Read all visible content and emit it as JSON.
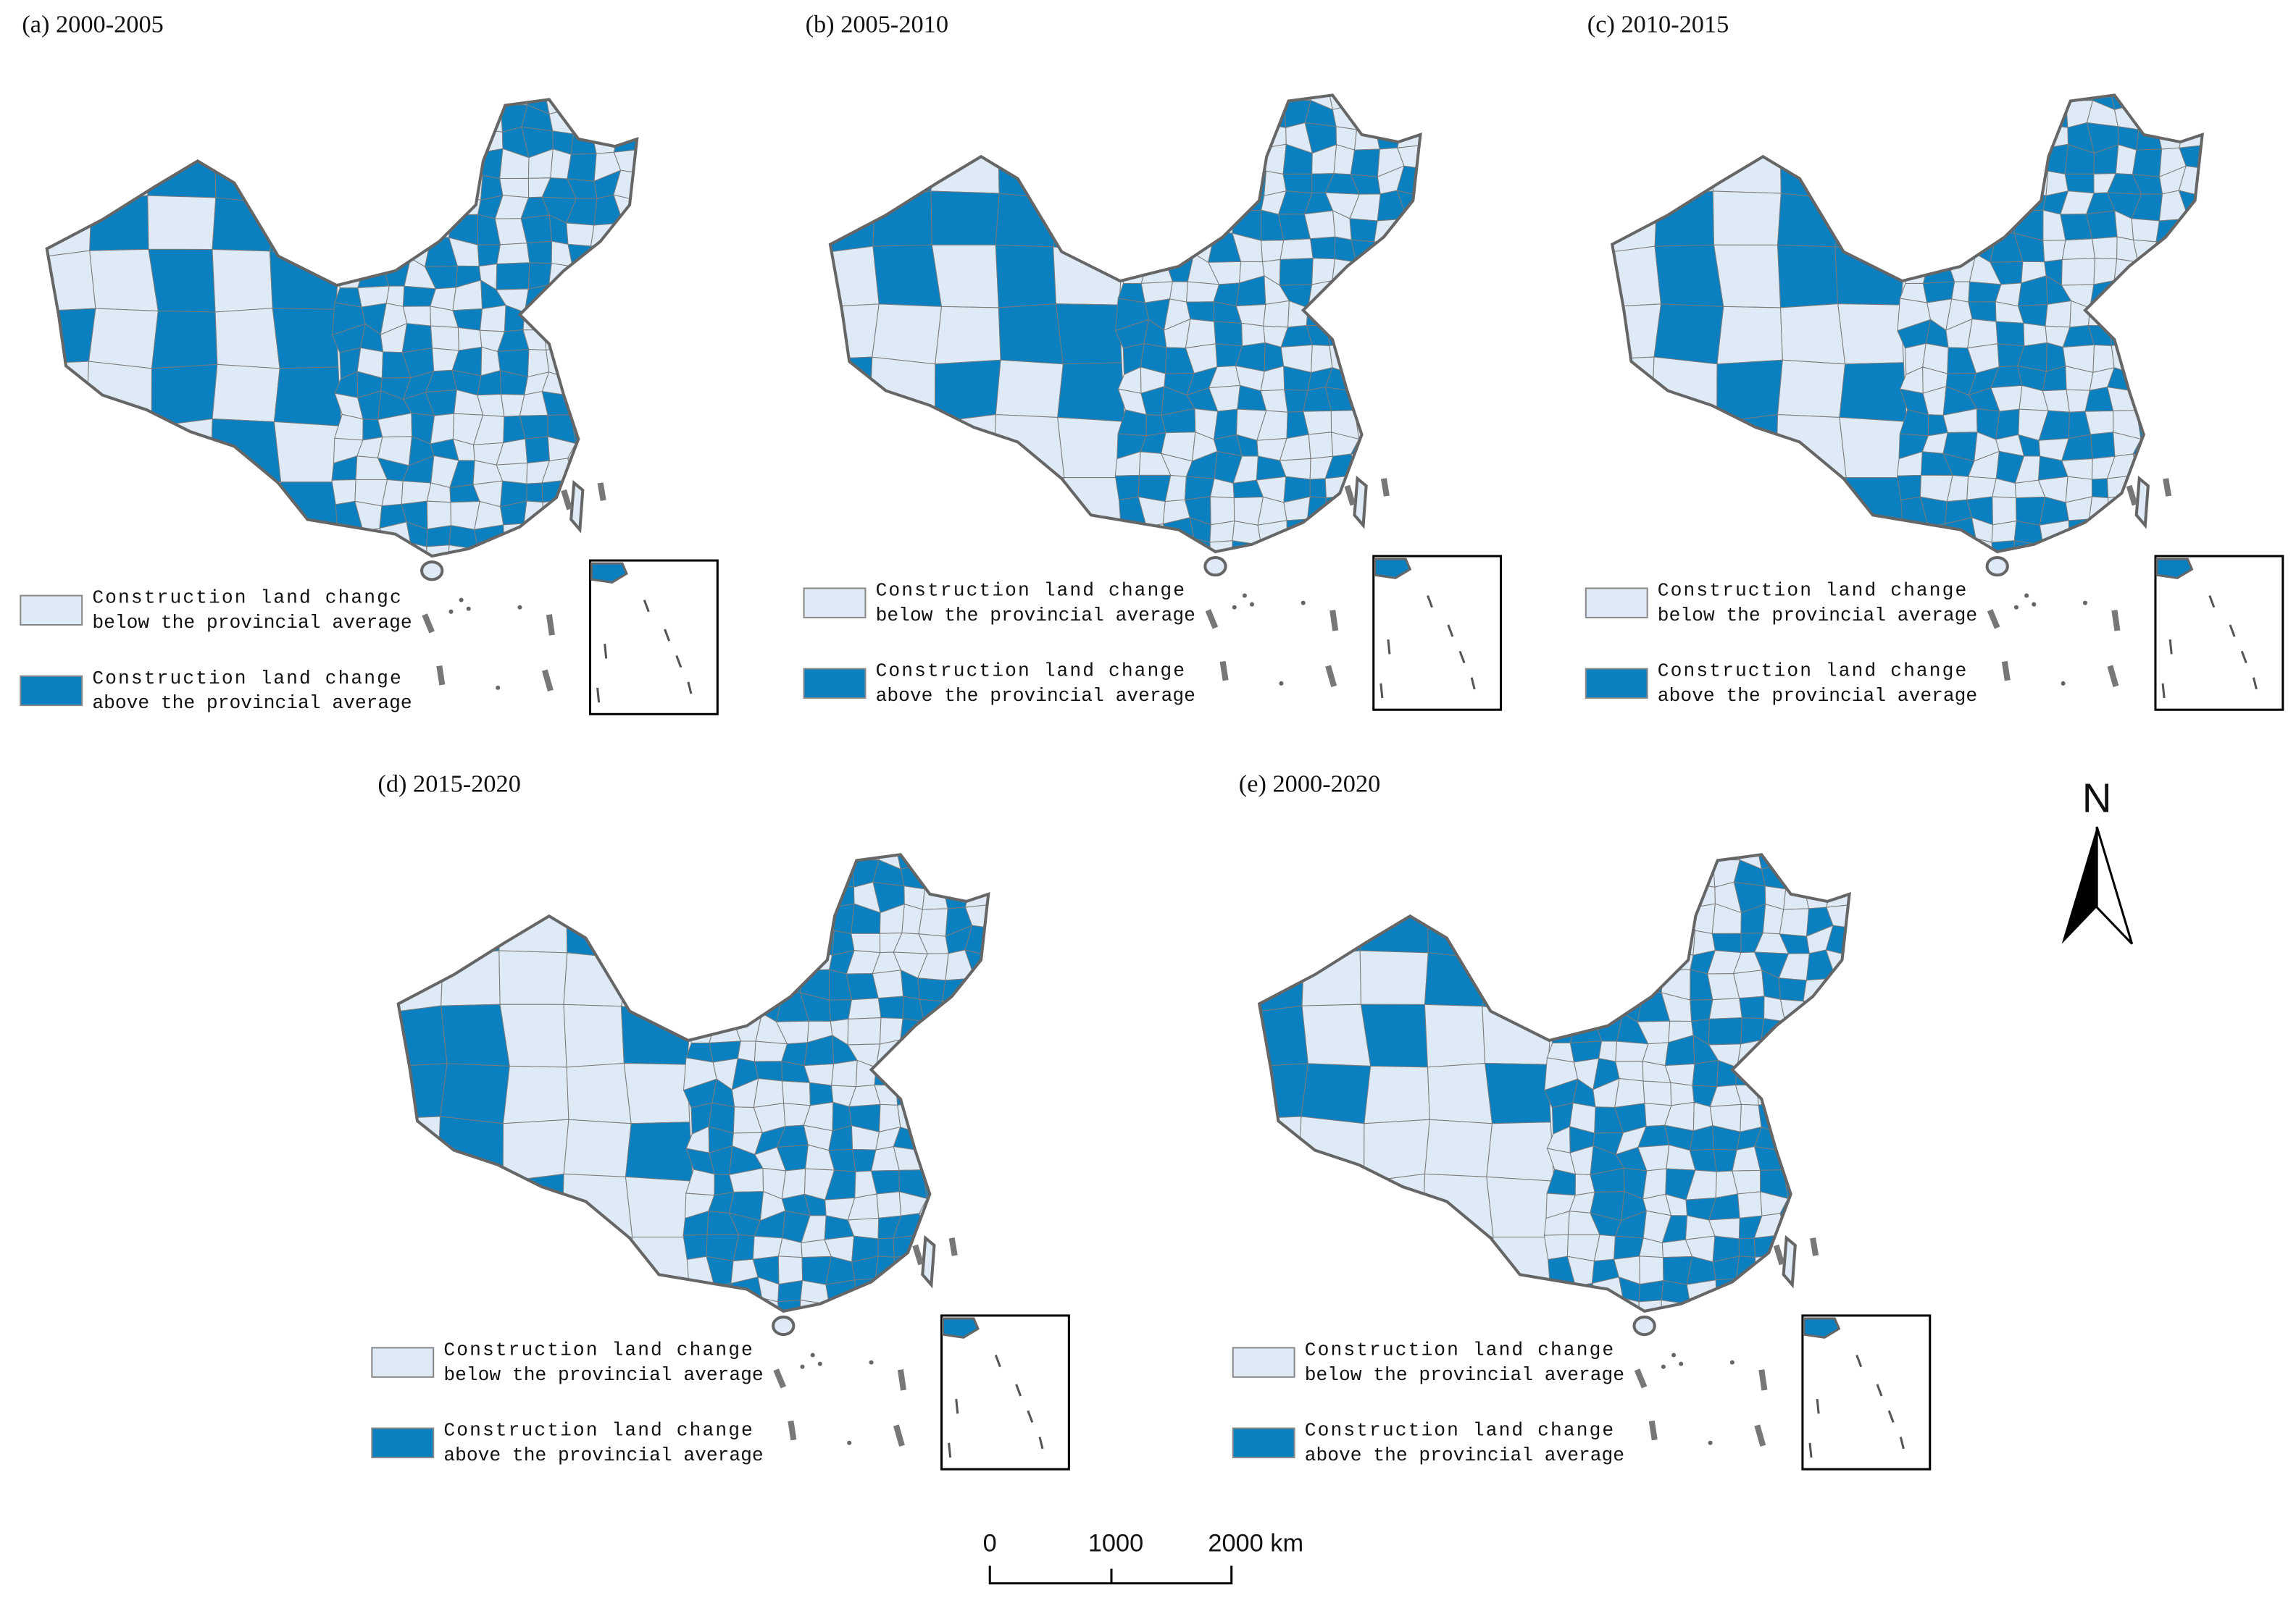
{
  "panels": [
    {
      "title": "(a) 2000-2005",
      "legend": {
        "below": [
          "Construction land changc",
          "below the provincial average"
        ],
        "above": [
          "Construction land change",
          "above the provincial average"
        ]
      }
    },
    {
      "title": "(b) 2005-2010",
      "legend": {
        "below": [
          "Construction land change",
          "below the provincial average"
        ],
        "above": [
          "Construction land change",
          "above the provincial average"
        ]
      }
    },
    {
      "title": "(c) 2010-2015",
      "legend": {
        "below": [
          "Construction land change",
          "below the provincial average"
        ],
        "above": [
          "Construction land change",
          "above the provincial average"
        ]
      }
    },
    {
      "title": "(d) 2015-2020",
      "legend": {
        "below": [
          "Construction land change",
          "below the provincial average"
        ],
        "above": [
          "Construction land change",
          "above the provincial average"
        ]
      }
    },
    {
      "title": "(e) 2000-2020",
      "legend": {
        "below": [
          "Construction land change",
          "below the provincial average"
        ],
        "above": [
          "Construction land change",
          "above the provincial average"
        ]
      }
    }
  ],
  "colors": {
    "below": "#deebf7",
    "above": "#0a80c0"
  },
  "north": "N",
  "scale_bar": {
    "labels": [
      "0",
      "1000",
      "2000 km"
    ]
  }
}
